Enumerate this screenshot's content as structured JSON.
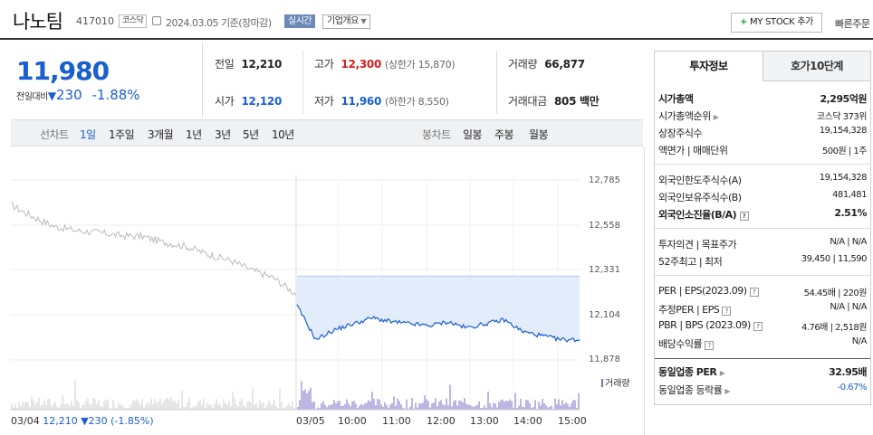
{
  "header": {
    "name": "나노팀",
    "code": "417010",
    "market": "코스닥",
    "date": "2024.03.05 기준(장마감)",
    "realtime": "실시간",
    "company": "기업개요",
    "mystock": "MY STOCK 추가",
    "quick_order": "빠른주문"
  },
  "price": {
    "current": "11,980",
    "change_label": "전일대비",
    "change": "230",
    "rate": "-1.88%"
  },
  "quotes": {
    "prev_label": "전일",
    "prev": "12,210",
    "high_label": "고가",
    "high": "12,300",
    "upper": "(상한가 15,870)",
    "vol_label": "거래량",
    "vol": "66,877",
    "open_label": "시가",
    "open": "12,120",
    "low_label": "저가",
    "low": "11,960",
    "lower": "(하한가 8,550)",
    "amt_label": "거래대금",
    "amt": "805 백만"
  },
  "periods": {
    "line_label": "선차트",
    "items": [
      "1일",
      "1주일",
      "3개월",
      "1년",
      "3년",
      "5년",
      "10년"
    ],
    "active": "1일",
    "candle_label": "봉차트",
    "candles": [
      "일봉",
      "주봉",
      "월봉"
    ]
  },
  "chart_data": {
    "type": "line",
    "y_ticks": [
      "12,785",
      "12,558",
      "12,331",
      "12,104",
      "11,878"
    ],
    "ylim": [
      11878,
      12785
    ],
    "x_ticks": [
      "03/04",
      "03/05",
      "10:00",
      "11:00",
      "12:00",
      "13:00",
      "14:00",
      "15:00"
    ],
    "series": [
      {
        "x": [
          "03/04 09:00",
          "03/04 09:30",
          "03/04 10:00",
          "03/04 10:30",
          "03/04 11:00",
          "03/04 11:30",
          "03/04 12:00",
          "03/04 12:30",
          "03/04 13:00",
          "03/04 13:30",
          "03/04 14:00",
          "03/04 14:30",
          "03/04 15:00",
          "03/04 15:30"
        ],
        "values": [
          12660,
          12600,
          12550,
          12530,
          12520,
          12505,
          12500,
          12470,
          12450,
          12410,
          12380,
          12330,
          12290,
          12210
        ]
      },
      {
        "x": [
          "09:00",
          "09:10",
          "09:20",
          "09:40",
          "10:00",
          "10:30",
          "11:00",
          "11:30",
          "12:00",
          "12:30",
          "13:00",
          "13:30",
          "14:00",
          "14:30",
          "15:00",
          "15:30"
        ],
        "values": [
          12150,
          11980,
          12030,
          12060,
          12090,
          12070,
          12060,
          12050,
          12070,
          12040,
          12060,
          12080,
          12020,
          12000,
          11980,
          11980
        ]
      }
    ],
    "volume_legend": "거래량",
    "prev_close_label": "12,210 ▼230 (-1.85%)"
  },
  "info_panel": {
    "tab_invest": "투자정보",
    "tab_quote": "호가10단계",
    "rows": [
      {
        "k": "시가총액",
        "v": "2,295억원"
      },
      {
        "k": "시가총액순위",
        "v": "코스닥 373위"
      },
      {
        "k": "상장주식수",
        "v": "19,154,328"
      },
      {
        "k": "액면가 | 매매단위",
        "v": "500원 | 1주"
      },
      {
        "k": "외국인한도주식수(A)",
        "v": "19,154,328"
      },
      {
        "k": "외국인보유주식수(B)",
        "v": "481,481"
      },
      {
        "k": "외국인소진율(B/A)",
        "v": "2.51%"
      },
      {
        "k": "투자의견 | 목표주가",
        "v": "N/A | N/A"
      },
      {
        "k": "52주최고 | 최저",
        "v": "39,450 | 11,590"
      },
      {
        "k": "PER | EPS(2023.09)",
        "v": "54.45배 | 220원"
      },
      {
        "k": "추정PER | EPS",
        "v": "N/A | N/A"
      },
      {
        "k": "PBR | BPS (2023.09)",
        "v": "4.76배 | 2,518원"
      },
      {
        "k": "배당수익률",
        "v": "N/A"
      },
      {
        "k": "동일업종 PER",
        "v": "32.95배"
      },
      {
        "k": "동일업종 등락률",
        "v": "-0.67%"
      }
    ]
  },
  "colors": {
    "down_blue": "#1a5fcf",
    "up_red": "#d81e1e",
    "volume_purple": "#7b6cc4"
  }
}
